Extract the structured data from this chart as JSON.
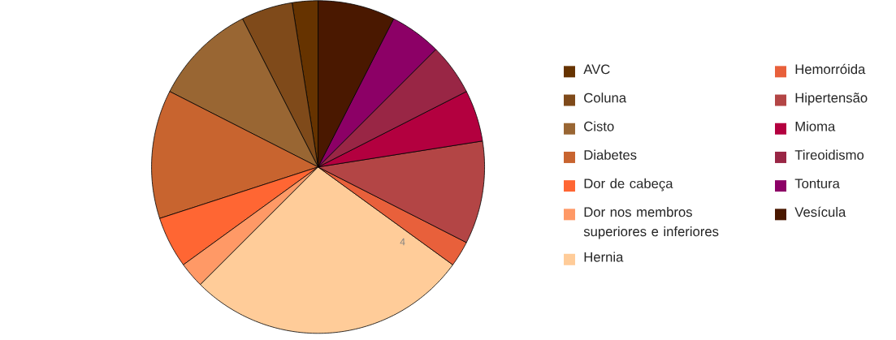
{
  "chart_data": {
    "type": "pie",
    "categories": [
      "AVC",
      "Coluna",
      "Cisto",
      "Diabetes",
      "Dor de cabeça",
      "Dor nos membros superiores e inferiores",
      "Hernia",
      "Hemorróida",
      "Hipertensão",
      "Mioma",
      "Tireoidismo",
      "Tontura",
      "Vesícula"
    ],
    "values": [
      2.5,
      5,
      10,
      12.5,
      5,
      2.5,
      27.5,
      2.5,
      10,
      5,
      5,
      5,
      7.5
    ],
    "colors": [
      "#663300",
      "#7f4a1a",
      "#996633",
      "#c8642f",
      "#ff6633",
      "#ff9966",
      "#ffcc99",
      "#e8603b",
      "#b34545",
      "#b3003f",
      "#992645",
      "#8c0066",
      "#4a1800"
    ],
    "legend": "right",
    "annotations": [
      "4"
    ]
  }
}
